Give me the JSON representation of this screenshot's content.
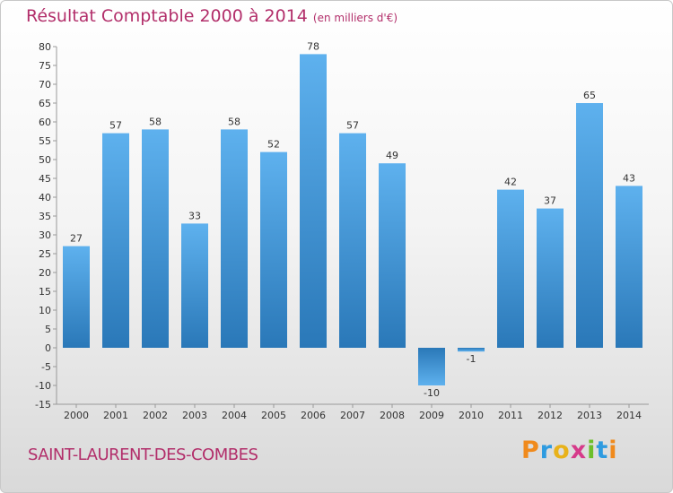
{
  "chart_data": {
    "type": "bar",
    "title": "Résultat Comptable 2000 à 2014",
    "unit": "(en milliers d'€)",
    "categories": [
      "2000",
      "2001",
      "2002",
      "2003",
      "2004",
      "2005",
      "2006",
      "2007",
      "2008",
      "2009",
      "2010",
      "2011",
      "2012",
      "2013",
      "2014"
    ],
    "values": [
      27,
      57,
      58,
      33,
      58,
      52,
      78,
      57,
      49,
      -10,
      -1,
      42,
      37,
      65,
      43
    ],
    "value_labels": [
      "27",
      "57",
      "58",
      "33",
      "58",
      "52",
      "78",
      "57",
      "49",
      "-10",
      "-1",
      "42",
      "37",
      "65",
      "43"
    ],
    "ylim": [
      -15,
      80
    ],
    "yticks": [
      -15,
      -10,
      -5,
      0,
      5,
      10,
      15,
      20,
      25,
      30,
      35,
      40,
      45,
      50,
      55,
      60,
      65,
      70,
      75,
      80
    ],
    "xlabel": "",
    "ylabel": "",
    "grid": false,
    "bar_color": "#4a9ee0"
  },
  "footer": {
    "commune": "SAINT-LAURENT-DES-COMBES",
    "logo_letters": [
      "P",
      "r",
      "o",
      "x",
      "i",
      "t",
      "i"
    ]
  }
}
